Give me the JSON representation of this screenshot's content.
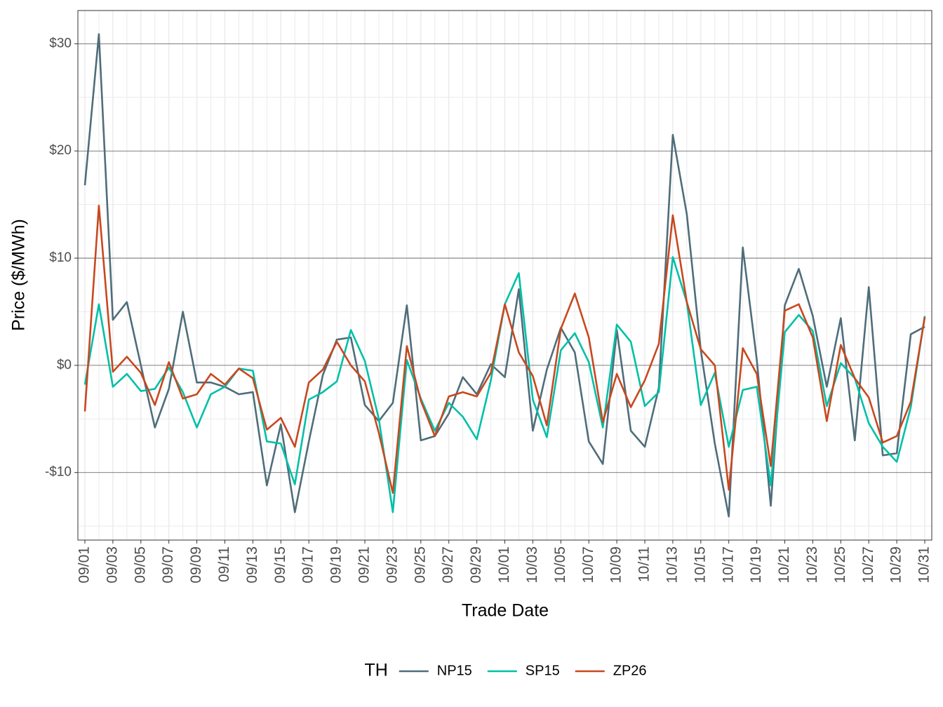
{
  "chart_data": {
    "type": "line",
    "x_label": "Trade Date",
    "y_label": "Price ($/MWh)",
    "legend_title": "TH",
    "legend_position": "bottom",
    "grid": true,
    "categories": [
      "09/01",
      null,
      "09/03",
      null,
      "09/05",
      null,
      "09/07",
      null,
      "09/09",
      null,
      "09/11",
      null,
      "09/13",
      null,
      "09/15",
      null,
      "09/17",
      null,
      "09/19",
      null,
      "09/21",
      null,
      "09/23",
      null,
      "09/25",
      null,
      "09/27",
      null,
      "09/29",
      null,
      "10/01",
      null,
      "10/03",
      null,
      "10/05",
      null,
      "10/07",
      null,
      "10/09",
      null,
      "10/11",
      null,
      "10/13",
      null,
      "10/15",
      null,
      "10/17",
      null,
      "10/19",
      null,
      "10/21",
      null,
      "10/23",
      null,
      "10/25",
      null,
      "10/27",
      null,
      "10/29",
      null,
      "10/31"
    ],
    "ylim": [
      -16.3,
      33.1
    ],
    "yticks": [
      {
        "value": -10,
        "label": "-$10"
      },
      {
        "value": 0,
        "label": "$0"
      },
      {
        "value": 10,
        "label": "$10"
      },
      {
        "value": 20,
        "label": "$20"
      },
      {
        "value": 30,
        "label": "$30"
      }
    ],
    "series": [
      {
        "name": "NP15",
        "color": "#4f6d7a",
        "values": [
          16.8,
          30.9,
          4.25,
          5.9,
          0,
          -5.8,
          -2.2,
          5.0,
          -1.6,
          -1.6,
          -2.0,
          -2.7,
          -2.5,
          -11.2,
          -5.5,
          -13.7,
          -7.1,
          -0.9,
          2.4,
          2.6,
          -3.7,
          -5.2,
          -3.5,
          5.6,
          -7.0,
          -6.6,
          -4.5,
          -1.1,
          -2.7,
          0.1,
          -1.1,
          7.1,
          -6.1,
          -0.4,
          3.5,
          1.2,
          -7.1,
          -9.2,
          3.3,
          -6.1,
          -7.6,
          -2.1,
          21.5,
          14.1,
          1.4,
          -7.3,
          -14.1,
          11.0,
          0.5,
          -13.1,
          5.6,
          9.0,
          4.6,
          -2.0,
          4.4,
          -7.0,
          7.3,
          -8.4,
          -8.2,
          2.9,
          3.6
        ]
      },
      {
        "name": "SP15",
        "color": "#00c0a8",
        "values": [
          -1.8,
          5.7,
          -2.0,
          -0.8,
          -2.4,
          -2.2,
          -0.2,
          -2.5,
          -5.8,
          -2.7,
          -2.0,
          -0.3,
          -0.5,
          -7.1,
          -7.3,
          -11.1,
          -3.2,
          -2.5,
          -1.5,
          3.3,
          0.4,
          -5.0,
          -13.7,
          0.5,
          -3.1,
          -6.1,
          -3.5,
          -4.8,
          -6.9,
          -1.4,
          5.7,
          8.6,
          -3.2,
          -6.7,
          1.4,
          3.0,
          0.3,
          -5.8,
          3.8,
          2.2,
          -3.8,
          -2.5,
          10.1,
          5.9,
          -3.7,
          -0.7,
          -7.6,
          -2.3,
          -2.0,
          -11.2,
          3.1,
          4.7,
          3.2,
          -3.8,
          0.2,
          -1.2,
          -5.4,
          -7.6,
          -9.0,
          -3.9,
          4.6
        ]
      },
      {
        "name": "ZP26",
        "color": "#c8481f",
        "values": [
          -4.3,
          14.9,
          -0.6,
          0.8,
          -0.7,
          -3.7,
          0.3,
          -3.1,
          -2.7,
          -0.8,
          -1.8,
          -0.3,
          -1.2,
          -6.0,
          -4.9,
          -7.6,
          -1.6,
          -0.4,
          2.2,
          0.0,
          -1.5,
          -6.3,
          -11.9,
          1.8,
          -3.3,
          -6.6,
          -2.9,
          -2.5,
          -2.9,
          -0.7,
          5.7,
          1.2,
          -1.0,
          -5.6,
          3.4,
          6.7,
          2.6,
          -5.3,
          -0.8,
          -3.9,
          -1.4,
          2.0,
          14.0,
          5.9,
          1.5,
          0.0,
          -11.6,
          1.6,
          -0.8,
          -9.4,
          5.1,
          5.7,
          2.6,
          -5.2,
          1.9,
          -1.2,
          -3.0,
          -7.2,
          -6.6,
          -3.4,
          4.5
        ]
      }
    ]
  }
}
